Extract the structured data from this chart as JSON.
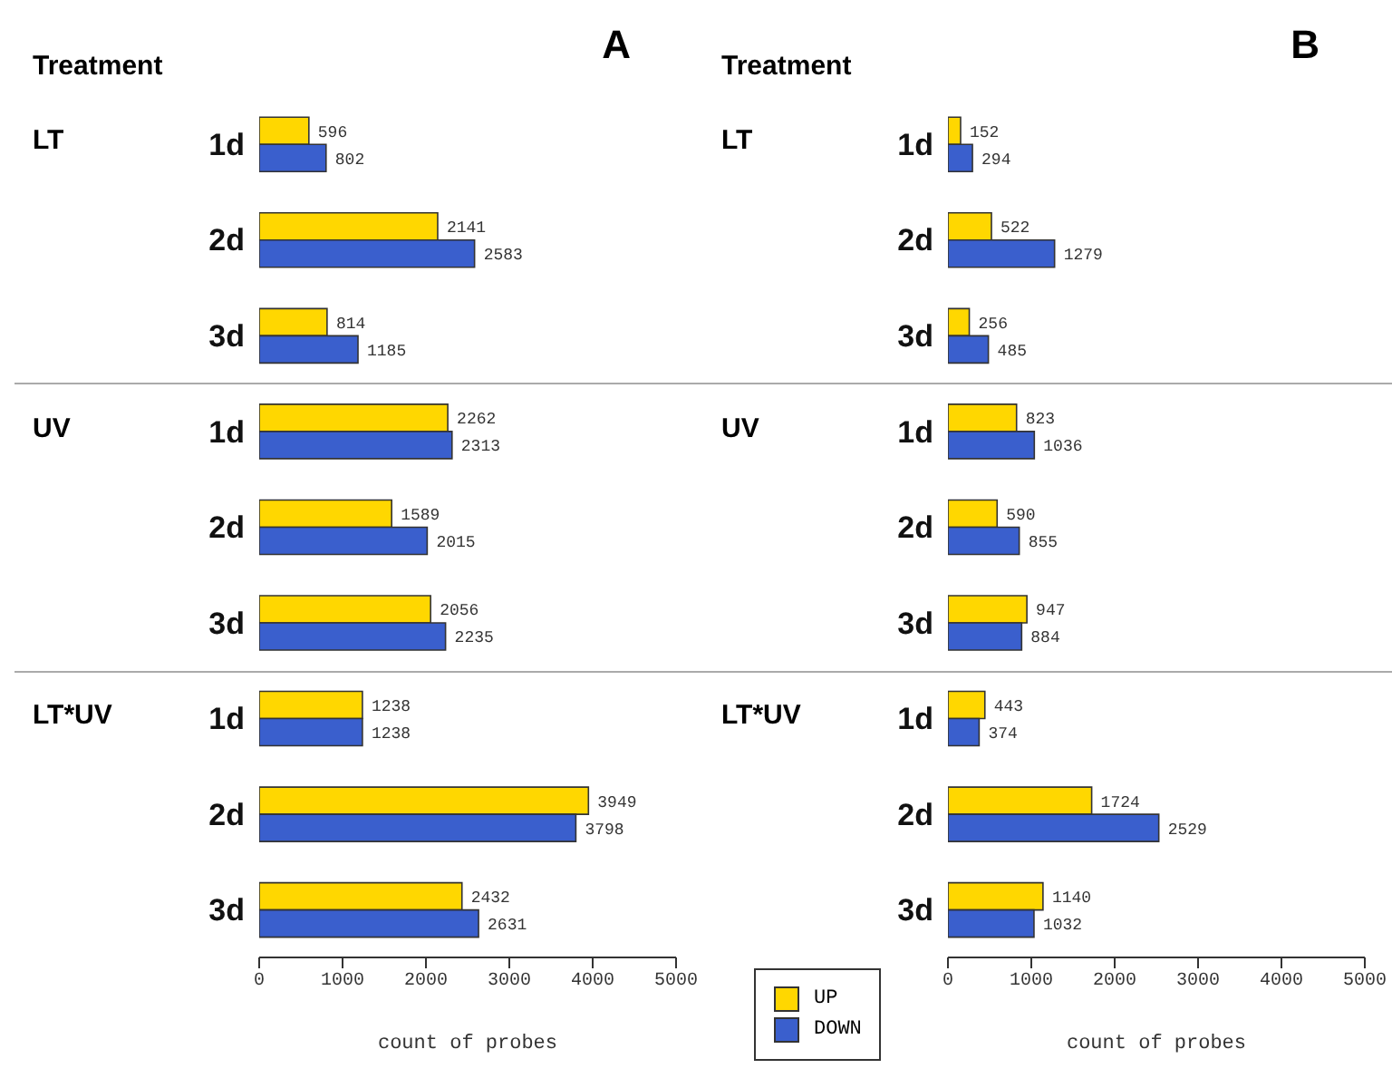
{
  "chart_data": [
    {
      "type": "bar",
      "orientation": "horizontal",
      "title": "A",
      "xlabel": "count of probes",
      "categories": [
        "1d",
        "2d",
        "3d",
        "1d",
        "2d",
        "3d",
        "1d",
        "2d",
        "3d"
      ],
      "series": [
        {
          "color": "#ffd700",
          "values": [
            596,
            2141,
            814,
            2262,
            1589,
            2056,
            1238,
            3949,
            2432
          ]
        },
        {
          "color": "#3a5fcd",
          "values": [
            802,
            2583,
            1185,
            2313,
            2015,
            2235,
            1238,
            3798,
            2631
          ]
        }
      ],
      "annotations": [
        "Treatment",
        "LT",
        "UV",
        "LT*UV"
      ],
      "xlim": [
        0,
        5000
      ],
      "xticks": [
        0,
        1000,
        2000,
        3000,
        4000,
        5000
      ],
      "data_labels": true,
      "grid": false
    },
    {
      "type": "bar",
      "orientation": "horizontal",
      "title": "B",
      "xlabel": "count of probes",
      "categories": [
        "1d",
        "2d",
        "3d",
        "1d",
        "2d",
        "3d",
        "1d",
        "2d",
        "3d"
      ],
      "series": [
        {
          "name": "UP",
          "color": "#ffd700",
          "values": [
            152,
            522,
            256,
            823,
            590,
            947,
            443,
            1724,
            1140
          ]
        },
        {
          "name": "DOWN",
          "color": "#3a5fcd",
          "values": [
            294,
            1279,
            485,
            1036,
            855,
            884,
            374,
            2529,
            1032
          ]
        }
      ],
      "annotations": [
        "Treatment",
        "LT",
        "UV",
        "LT*UV"
      ],
      "xlim": [
        0,
        5000
      ],
      "xticks": [
        0,
        1000,
        2000,
        3000,
        4000,
        5000
      ],
      "data_labels": true,
      "grid": false,
      "legend": "bottom left"
    }
  ]
}
